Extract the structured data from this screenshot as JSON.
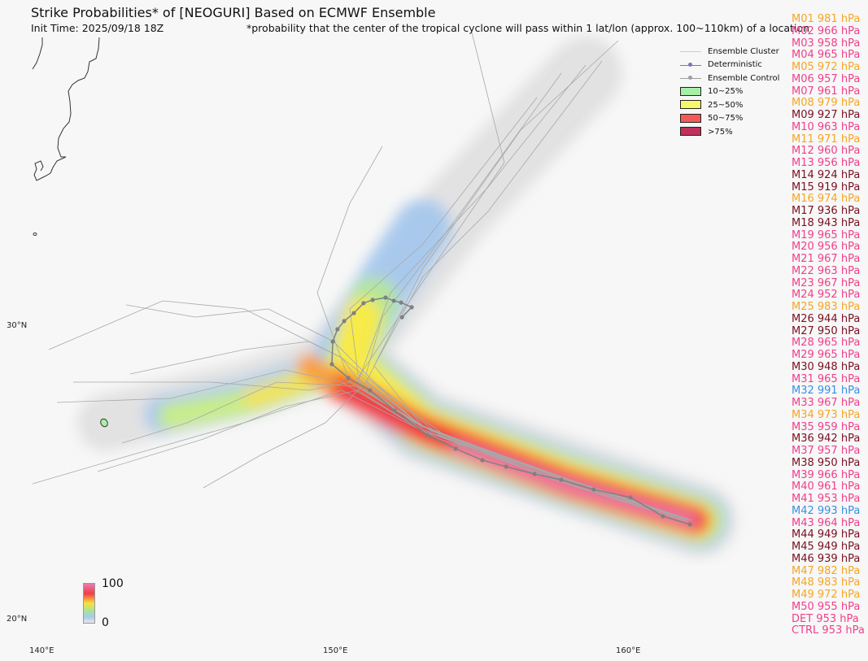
{
  "header": {
    "title": "Strike Probabilities* of [NEOGURI] Based on ECMWF Ensemble",
    "init_time": "Init Time: 2025/09/18 18Z",
    "footnote": "*probability that the center of the tropical cyclone will pass within 1 lat/lon (approx. 100~110km) of a location"
  },
  "axes": {
    "lon_labels": [
      "140°E",
      "150°E",
      "160°E"
    ],
    "lat_labels": [
      "30°N",
      "20°N"
    ]
  },
  "legend": {
    "items": [
      {
        "label": "Ensemble Cluster",
        "kind": "line",
        "color": "#cccccc"
      },
      {
        "label": "Deterministic",
        "kind": "line-dot",
        "color": "#7b72c0"
      },
      {
        "label": "Ensemble Control",
        "kind": "line-dot",
        "color": "#9e9e9e"
      },
      {
        "label": "10~25%",
        "kind": "box",
        "color": "#a6f0a6"
      },
      {
        "label": "25~50%",
        "kind": "box",
        "color": "#f7f76a"
      },
      {
        "label": "50~75%",
        "kind": "box",
        "color": "#f55a5a"
      },
      {
        "label": ">75%",
        "kind": "box",
        "color": "#c0305a"
      }
    ]
  },
  "colorbar": {
    "max_label": "100",
    "min_label": "0"
  },
  "pressure_colors": {
    "weak": "#f5a623",
    "moderate": "#f0408a",
    "strong": "#7a1020",
    "very_weak": "#3a8ee6"
  },
  "members": [
    {
      "label": "M01 981 hPa",
      "cls": "weak"
    },
    {
      "label": "M02 966 hPa",
      "cls": "moderate"
    },
    {
      "label": "M03 958 hPa",
      "cls": "moderate"
    },
    {
      "label": "M04 965 hPa",
      "cls": "moderate"
    },
    {
      "label": "M05 972 hPa",
      "cls": "weak"
    },
    {
      "label": "M06 957 hPa",
      "cls": "moderate"
    },
    {
      "label": "M07 961 hPa",
      "cls": "moderate"
    },
    {
      "label": "M08 979 hPa",
      "cls": "weak"
    },
    {
      "label": "M09 927 hPa",
      "cls": "strong"
    },
    {
      "label": "M10 963 hPa",
      "cls": "moderate"
    },
    {
      "label": "M11 971 hPa",
      "cls": "weak"
    },
    {
      "label": "M12 960 hPa",
      "cls": "moderate"
    },
    {
      "label": "M13 956 hPa",
      "cls": "moderate"
    },
    {
      "label": "M14 924 hPa",
      "cls": "strong"
    },
    {
      "label": "M15 919 hPa",
      "cls": "strong"
    },
    {
      "label": "M16 974 hPa",
      "cls": "weak"
    },
    {
      "label": "M17 936 hPa",
      "cls": "strong"
    },
    {
      "label": "M18 943 hPa",
      "cls": "strong"
    },
    {
      "label": "M19 965 hPa",
      "cls": "moderate"
    },
    {
      "label": "M20 956 hPa",
      "cls": "moderate"
    },
    {
      "label": "M21 967 hPa",
      "cls": "moderate"
    },
    {
      "label": "M22 963 hPa",
      "cls": "moderate"
    },
    {
      "label": "M23 967 hPa",
      "cls": "moderate"
    },
    {
      "label": "M24 952 hPa",
      "cls": "moderate"
    },
    {
      "label": "M25 983 hPa",
      "cls": "weak"
    },
    {
      "label": "M26 944 hPa",
      "cls": "strong"
    },
    {
      "label": "M27 950 hPa",
      "cls": "strong"
    },
    {
      "label": "M28 965 hPa",
      "cls": "moderate"
    },
    {
      "label": "M29 965 hPa",
      "cls": "moderate"
    },
    {
      "label": "M30 948 hPa",
      "cls": "strong"
    },
    {
      "label": "M31 965 hPa",
      "cls": "moderate"
    },
    {
      "label": "M32 991 hPa",
      "cls": "very_weak"
    },
    {
      "label": "M33 967 hPa",
      "cls": "moderate"
    },
    {
      "label": "M34 973 hPa",
      "cls": "weak"
    },
    {
      "label": "M35 959 hPa",
      "cls": "moderate"
    },
    {
      "label": "M36 942 hPa",
      "cls": "strong"
    },
    {
      "label": "M37 957 hPa",
      "cls": "moderate"
    },
    {
      "label": "M38 950 hPa",
      "cls": "strong"
    },
    {
      "label": "M39 966 hPa",
      "cls": "moderate"
    },
    {
      "label": "M40 961 hPa",
      "cls": "moderate"
    },
    {
      "label": "M41 953 hPa",
      "cls": "moderate"
    },
    {
      "label": "M42 993 hPa",
      "cls": "very_weak"
    },
    {
      "label": "M43 964 hPa",
      "cls": "moderate"
    },
    {
      "label": "M44 949 hPa",
      "cls": "strong"
    },
    {
      "label": "M45 949 hPa",
      "cls": "strong"
    },
    {
      "label": "M46 939 hPa",
      "cls": "strong"
    },
    {
      "label": "M47 982 hPa",
      "cls": "weak"
    },
    {
      "label": "M48 983 hPa",
      "cls": "weak"
    },
    {
      "label": "M49 972 hPa",
      "cls": "weak"
    },
    {
      "label": "M50 955 hPa",
      "cls": "moderate"
    },
    {
      "label": "DET 953 hPa",
      "cls": "moderate"
    },
    {
      "label": "CTRL 953 hPa",
      "cls": "moderate"
    }
  ],
  "control_track": [
    [
      162.14,
      23.24
    ],
    [
      161.22,
      23.52
    ],
    [
      160.11,
      24.16
    ],
    [
      158.86,
      24.43
    ],
    [
      157.75,
      24.76
    ],
    [
      156.84,
      24.96
    ],
    [
      155.87,
      25.21
    ],
    [
      155.06,
      25.43
    ],
    [
      154.15,
      25.82
    ],
    [
      153.18,
      26.29
    ],
    [
      152.07,
      27.12
    ],
    [
      151.23,
      27.81
    ],
    [
      150.49,
      28.23
    ],
    [
      149.93,
      28.7
    ],
    [
      149.96,
      29.47
    ],
    [
      150.12,
      29.89
    ],
    [
      150.35,
      30.17
    ],
    [
      150.68,
      30.44
    ],
    [
      151.01,
      30.78
    ],
    [
      151.32,
      30.89
    ],
    [
      151.76,
      30.97
    ],
    [
      152.04,
      30.86
    ],
    [
      152.29,
      30.8
    ],
    [
      152.65,
      30.64
    ],
    [
      152.32,
      30.3
    ]
  ]
}
